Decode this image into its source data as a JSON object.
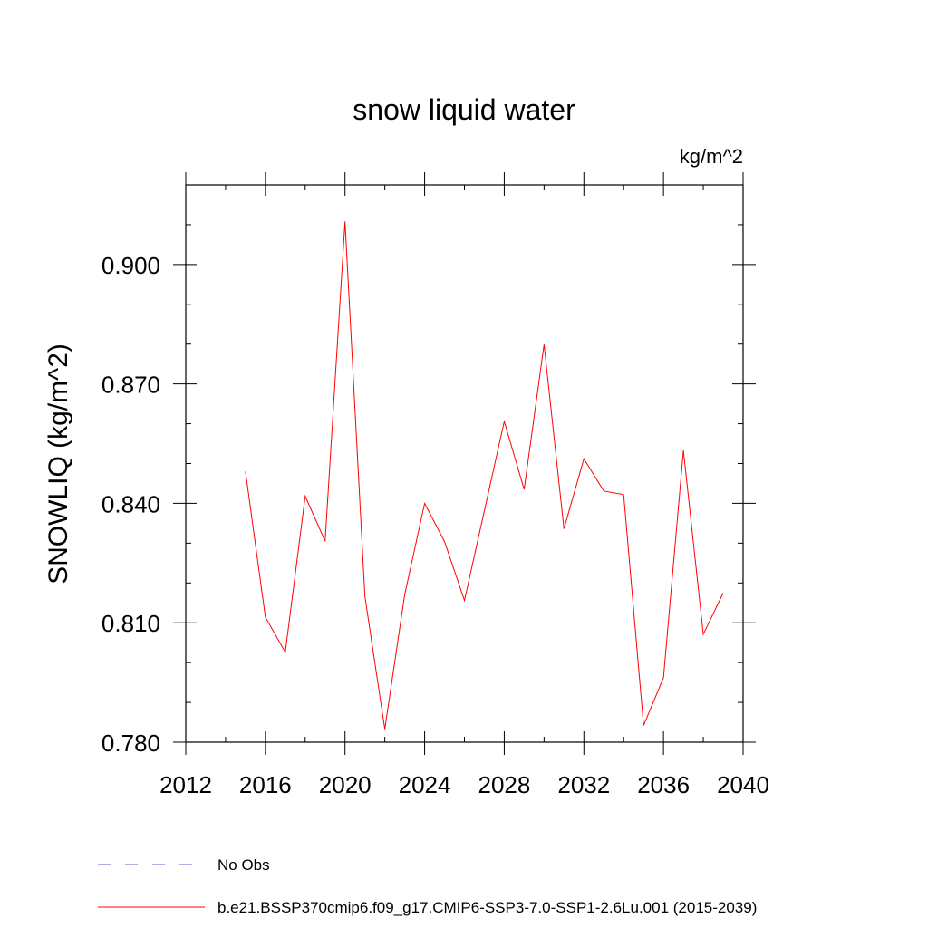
{
  "chart_data": {
    "type": "line",
    "title": "snow liquid water",
    "units": "kg/m^2",
    "ylabel": "SNOWLIQ  (kg/m^2)",
    "xlabel": "",
    "xlim": [
      2012,
      2040
    ],
    "ylim": [
      0.78,
      0.92
    ],
    "x_ticks": [
      2012,
      2016,
      2020,
      2024,
      2028,
      2032,
      2036,
      2040
    ],
    "x_minor_step": 2,
    "y_ticks": [
      0.78,
      0.81,
      0.84,
      0.87,
      0.9
    ],
    "y_tick_labels": [
      "0.780",
      "0.810",
      "0.840",
      "0.870",
      "0.900"
    ],
    "y_minor_step": 0.01,
    "grid": false,
    "series": [
      {
        "name": "b.e21.BSSP370cmip6.f09_g17.CMIP6-SSP3-7.0-SSP1-2.6Lu.001 (2015-2039)",
        "color": "#ff0000",
        "style": "solid",
        "x": [
          2015,
          2016,
          2017,
          2018,
          2019,
          2020,
          2021,
          2022,
          2023,
          2024,
          2025,
          2026,
          2027,
          2028,
          2029,
          2030,
          2031,
          2032,
          2033,
          2034,
          2035,
          2036,
          2037,
          2038,
          2039
        ],
        "values": [
          0.848,
          0.8114,
          0.8026,
          0.8418,
          0.8305,
          0.9108,
          0.8166,
          0.7833,
          0.8171,
          0.84,
          0.8304,
          0.8156,
          0.8381,
          0.8606,
          0.8435,
          0.8799,
          0.8336,
          0.8512,
          0.8431,
          0.8422,
          0.7842,
          0.7962,
          0.8533,
          0.8071,
          0.8175
        ]
      }
    ],
    "legend": {
      "placement": "bottom-left",
      "entries": [
        {
          "label": "No Obs",
          "color": "#6a5acd",
          "style": "dashed"
        },
        {
          "label": "b.e21.BSSP370cmip6.f09_g17.CMIP6-SSP3-7.0-SSP1-2.6Lu.001 (2015-2039)",
          "color": "#ff0000",
          "style": "solid"
        }
      ]
    }
  }
}
